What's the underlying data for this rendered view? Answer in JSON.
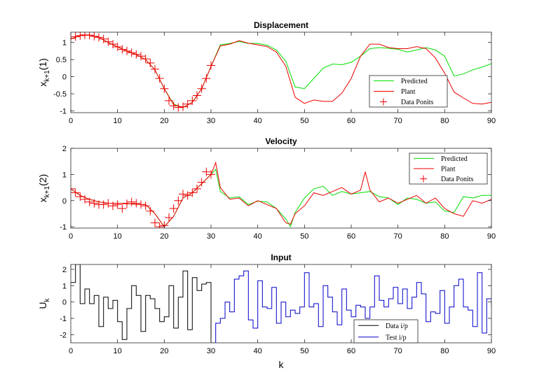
{
  "chart_data": [
    {
      "type": "line",
      "title": "Displacement",
      "ylabel_main": "x",
      "ylabel_sub": "k+1",
      "ylabel_arg": "(1)",
      "xlabel": "",
      "xlim": [
        0,
        90
      ],
      "ylim": [
        -1.05,
        1.3
      ],
      "xticks": [
        0,
        10,
        20,
        30,
        40,
        50,
        60,
        70,
        80,
        90
      ],
      "yticks": [
        -1,
        -0.5,
        0,
        0.5,
        1
      ],
      "ytick_labels": [
        "-1",
        "-0.5",
        "0",
        "0.5",
        "1"
      ],
      "legend_position": "lower-right-inside",
      "series": [
        {
          "name": "Predicted",
          "style": "line",
          "color": "#00e000",
          "x": [
            0,
            2,
            4,
            6,
            8,
            10,
            12,
            14,
            16,
            18,
            20,
            22,
            24,
            26,
            28,
            30,
            32,
            34,
            36,
            38,
            40,
            42,
            44,
            46,
            48,
            50,
            52,
            54,
            56,
            58,
            60,
            62,
            64,
            66,
            68,
            70,
            72,
            74,
            76,
            78,
            80,
            82,
            84,
            86,
            88,
            90
          ],
          "y": [
            1.1,
            1.2,
            1.22,
            1.15,
            1.0,
            0.87,
            0.75,
            0.65,
            0.5,
            0.2,
            -0.35,
            -0.8,
            -0.9,
            -0.75,
            -0.35,
            0.3,
            0.93,
            0.97,
            1.03,
            0.97,
            0.97,
            0.92,
            0.78,
            0.45,
            -0.3,
            -0.35,
            -0.05,
            0.25,
            0.37,
            0.35,
            0.42,
            0.6,
            0.82,
            0.85,
            0.83,
            0.8,
            0.72,
            0.78,
            0.85,
            0.78,
            0.6,
            0.02,
            0.08,
            0.2,
            0.28,
            0.38
          ]
        },
        {
          "name": "Plant",
          "style": "line",
          "color": "#ee0000",
          "x": [
            0,
            2,
            4,
            6,
            8,
            10,
            12,
            14,
            16,
            18,
            20,
            22,
            24,
            26,
            28,
            30,
            32,
            34,
            36,
            38,
            40,
            42,
            44,
            46,
            48,
            50,
            52,
            54,
            56,
            58,
            60,
            62,
            64,
            66,
            68,
            70,
            72,
            74,
            76,
            78,
            80,
            82,
            84,
            86,
            88,
            90
          ],
          "y": [
            1.1,
            1.2,
            1.22,
            1.15,
            1.0,
            0.87,
            0.75,
            0.65,
            0.5,
            0.2,
            -0.35,
            -0.82,
            -0.9,
            -0.75,
            -0.35,
            0.3,
            0.9,
            0.95,
            1.05,
            0.98,
            0.93,
            0.88,
            0.72,
            0.3,
            -0.6,
            -0.78,
            -0.68,
            -0.72,
            -0.72,
            -0.48,
            -0.05,
            0.6,
            0.95,
            0.95,
            0.85,
            0.82,
            0.82,
            0.88,
            0.82,
            0.55,
            0.1,
            -0.45,
            -0.62,
            -0.78,
            -0.8,
            -0.75
          ]
        },
        {
          "name": "Data Ponits",
          "style": "marker",
          "color": "#ee0000",
          "x": [
            0,
            1,
            2,
            3,
            4,
            5,
            6,
            7,
            8,
            9,
            10,
            11,
            12,
            13,
            14,
            15,
            16,
            17,
            18,
            19,
            20,
            21,
            22,
            23,
            24,
            25,
            26,
            27,
            28,
            29,
            30
          ],
          "y": [
            1.12,
            1.17,
            1.2,
            1.22,
            1.21,
            1.18,
            1.15,
            1.1,
            1.02,
            0.95,
            0.87,
            0.8,
            0.75,
            0.7,
            0.65,
            0.6,
            0.52,
            0.4,
            0.22,
            -0.05,
            -0.35,
            -0.7,
            -0.85,
            -0.9,
            -0.88,
            -0.8,
            -0.7,
            -0.55,
            -0.35,
            -0.05,
            0.33
          ]
        }
      ]
    },
    {
      "type": "line",
      "title": "Velocity",
      "ylabel_main": "x",
      "ylabel_sub": "k+1",
      "ylabel_arg": "(2)",
      "xlabel": "",
      "xlim": [
        0,
        90
      ],
      "ylim": [
        -1.05,
        2.0
      ],
      "xticks": [
        0,
        10,
        20,
        30,
        40,
        50,
        60,
        70,
        80,
        90
      ],
      "yticks": [
        -1,
        0,
        1,
        2
      ],
      "ytick_labels": [
        "-1",
        "0",
        "1",
        "2"
      ],
      "legend_position": "top-right",
      "series": [
        {
          "name": "Predicted",
          "style": "line",
          "color": "#00e000",
          "x": [
            0,
            2,
            4,
            6,
            8,
            10,
            12,
            14,
            16,
            18,
            20,
            22,
            24,
            26,
            28,
            30,
            31,
            32,
            34,
            36,
            38,
            40,
            42,
            44,
            46,
            47,
            48,
            50,
            52,
            54,
            56,
            58,
            60,
            62,
            64,
            66,
            68,
            70,
            72,
            74,
            76,
            78,
            80,
            82,
            84,
            86,
            88,
            90
          ],
          "y": [
            0.45,
            0.2,
            0.05,
            -0.05,
            -0.1,
            -0.1,
            -0.1,
            -0.15,
            -0.15,
            -0.5,
            -1.0,
            -0.6,
            0.1,
            0.3,
            0.65,
            1.0,
            1.2,
            0.35,
            0.1,
            0.15,
            -0.15,
            -0.02,
            -0.05,
            -0.3,
            -0.7,
            -1.0,
            -0.45,
            0.1,
            0.45,
            0.55,
            0.2,
            0.35,
            0.25,
            0.3,
            0.35,
            0.15,
            0.1,
            -0.15,
            0.1,
            0.05,
            -0.1,
            -0.05,
            -0.4,
            -0.45,
            0.15,
            0.1,
            0.2,
            0.2
          ]
        },
        {
          "name": "Plant",
          "style": "line",
          "color": "#ee0000",
          "x": [
            0,
            2,
            4,
            6,
            8,
            10,
            12,
            14,
            16,
            18,
            20,
            22,
            24,
            26,
            28,
            30,
            31,
            32,
            34,
            36,
            38,
            40,
            42,
            44,
            46,
            47,
            48,
            50,
            52,
            54,
            56,
            58,
            60,
            62,
            63,
            64,
            66,
            68,
            70,
            72,
            74,
            76,
            78,
            80,
            82,
            84,
            86,
            88,
            90
          ],
          "y": [
            0.45,
            0.2,
            0.05,
            -0.05,
            -0.1,
            -0.1,
            -0.1,
            -0.15,
            -0.15,
            -0.5,
            -1.0,
            -0.6,
            0.1,
            0.3,
            0.65,
            1.0,
            1.45,
            0.5,
            0.05,
            0.1,
            -0.2,
            0.0,
            -0.15,
            -0.3,
            -0.85,
            -0.9,
            -0.5,
            -0.2,
            0.3,
            0.2,
            0.35,
            0.5,
            0.25,
            0.4,
            1.1,
            0.4,
            -0.05,
            0.1,
            -0.1,
            0.05,
            0.2,
            -0.1,
            0.1,
            -0.3,
            -0.5,
            -0.6,
            0.0,
            -0.1,
            0.05
          ]
        },
        {
          "name": "Data Ponits",
          "style": "marker",
          "color": "#ee0000",
          "x": [
            0,
            1,
            2,
            3,
            4,
            5,
            6,
            7,
            8,
            9,
            10,
            11,
            12,
            13,
            14,
            15,
            16,
            17,
            18,
            19,
            20,
            21,
            22,
            23,
            24,
            25,
            26,
            27,
            28,
            29,
            30
          ],
          "y": [
            0.45,
            0.3,
            0.15,
            0.05,
            -0.05,
            -0.1,
            -0.15,
            -0.15,
            -0.1,
            -0.2,
            -0.15,
            -0.3,
            -0.12,
            -0.05,
            -0.1,
            -0.15,
            -0.2,
            -0.4,
            -0.85,
            -1.0,
            -0.95,
            -0.65,
            -0.3,
            0.0,
            0.25,
            0.2,
            0.3,
            0.45,
            0.7,
            1.1,
            1.0
          ]
        }
      ]
    },
    {
      "type": "line",
      "title": "Input",
      "ylabel_main": "U",
      "ylabel_sub": "k",
      "ylabel_arg": "",
      "xlabel": "k",
      "xlim": [
        0,
        90
      ],
      "ylim": [
        -2.5,
        2.3
      ],
      "xticks": [
        0,
        10,
        20,
        30,
        40,
        50,
        60,
        70,
        80,
        90
      ],
      "yticks": [
        -2,
        -1,
        0,
        1,
        2
      ],
      "ytick_labels": [
        "-2",
        "-1",
        "0",
        "1",
        "2"
      ],
      "legend_position": "lower-right",
      "series": [
        {
          "name": "Data i/p",
          "style": "stairs",
          "color": "#000000",
          "x": [
            0,
            1,
            2,
            3,
            4,
            5,
            6,
            7,
            8,
            9,
            10,
            11,
            12,
            13,
            14,
            15,
            16,
            17,
            18,
            19,
            20,
            21,
            22,
            23,
            24,
            25,
            26,
            27,
            28,
            29,
            30,
            31
          ],
          "y": [
            1.2,
            2.3,
            -0.1,
            0.8,
            -0.1,
            0.4,
            -1.5,
            0.3,
            -0.4,
            0.1,
            -1.2,
            -2.3,
            -0.4,
            1.0,
            0.4,
            -1.8,
            0.4,
            0.2,
            -0.4,
            -1.2,
            -0.9,
            1.0,
            -1.6,
            0.3,
            1.9,
            -1.7,
            1.5,
            0.7,
            1.1,
            1.2,
            -2.5,
            -2.5
          ]
        },
        {
          "name": "Test i/p",
          "style": "stairs",
          "color": "#0000cc",
          "x": [
            30,
            31,
            32,
            33,
            34,
            35,
            36,
            37,
            38,
            39,
            40,
            41,
            42,
            43,
            44,
            45,
            46,
            47,
            48,
            49,
            50,
            51,
            52,
            53,
            54,
            55,
            56,
            57,
            58,
            59,
            60,
            61,
            62,
            63,
            64,
            65,
            66,
            67,
            68,
            69,
            70,
            71,
            72,
            73,
            74,
            75,
            76,
            77,
            78,
            79,
            80,
            81,
            82,
            83,
            84,
            85,
            86,
            87,
            88,
            89,
            90
          ],
          "y": [
            -2.5,
            -1.3,
            -1.0,
            0.0,
            -0.6,
            1.4,
            1.6,
            1.9,
            -1.1,
            -1.6,
            1.3,
            -0.3,
            -0.4,
            0.9,
            -1.3,
            0.0,
            -0.9,
            -0.5,
            -0.7,
            -0.3,
            1.8,
            -0.3,
            -0.1,
            -1.5,
            1.0,
            0.3,
            -0.6,
            -1.4,
            0.8,
            -0.5,
            -0.9,
            -0.2,
            -0.3,
            -1.0,
            -0.3,
            1.6,
            0.1,
            -0.3,
            0.2,
            0.9,
            -0.1,
            0.8,
            -0.4,
            0.3,
            1.2,
            0.5,
            -1.2,
            -0.6,
            -0.7,
            0.7,
            -1.3,
            -0.3,
            1.0,
            1.4,
            -0.3,
            -0.5,
            -1.5,
            1.8,
            -1.9,
            0.2,
            -0.3
          ]
        }
      ]
    }
  ]
}
